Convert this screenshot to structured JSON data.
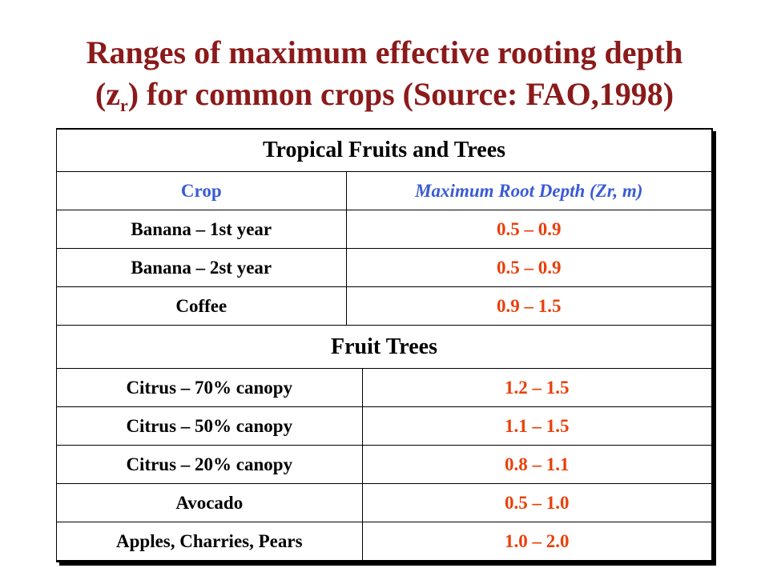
{
  "title": {
    "line1": "Ranges of maximum effective rooting depth",
    "line2_pre": "(z",
    "line2_sub": "r",
    "line2_post": ") for common crops (Source: FAO,1998)"
  },
  "table": {
    "section1": "Tropical Fruits and Trees",
    "header": {
      "crop": "Crop",
      "depth": "Maximum Root Depth (Zr, m)"
    },
    "rows1": [
      {
        "crop": "Banana – 1st year",
        "depth": "0.5 – 0.9"
      },
      {
        "crop": "Banana – 2st year",
        "depth": "0.5 – 0.9"
      },
      {
        "crop": "Coffee",
        "depth": "0.9 – 1.5"
      }
    ],
    "section2": "Fruit Trees",
    "rows2": [
      {
        "crop": "Citrus – 70% canopy",
        "depth": "1.2 – 1.5"
      },
      {
        "crop": "Citrus – 50% canopy",
        "depth": "1.1 – 1.5"
      },
      {
        "crop": "Citrus – 20% canopy",
        "depth": "0.8 – 1.1"
      },
      {
        "crop": "Avocado",
        "depth": "0.5 – 1.0"
      },
      {
        "crop": "Apples, Charries, Pears",
        "depth": "1.0 – 2.0"
      }
    ]
  },
  "colors": {
    "title": "#8b1a1a",
    "header": "#3a5bd6",
    "value": "#e8400a"
  }
}
